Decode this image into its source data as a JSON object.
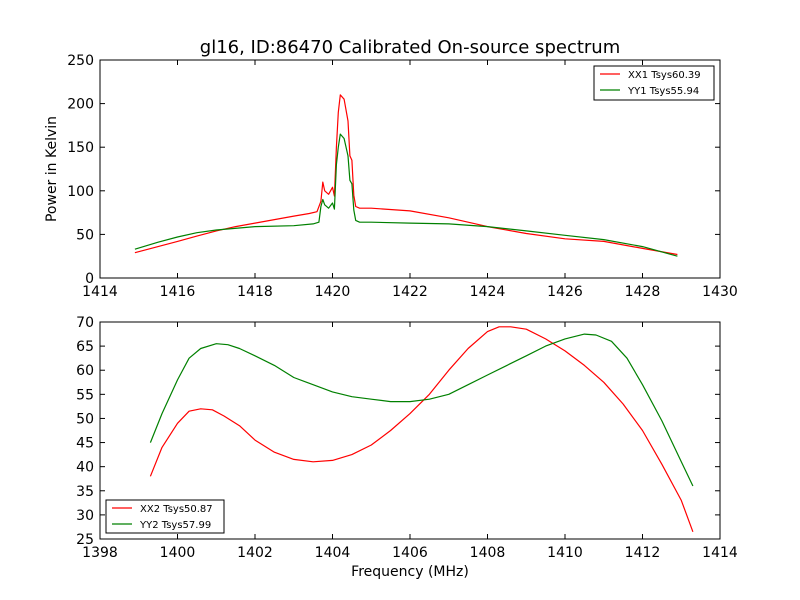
{
  "chart_data": [
    {
      "type": "line",
      "title": "gl16, ID:86470 Calibrated On-source spectrum",
      "xlabel": "",
      "ylabel": "Power in Kelvin",
      "xlim": [
        1414,
        1430
      ],
      "ylim": [
        0,
        250
      ],
      "xticks": [
        1414,
        1416,
        1418,
        1420,
        1422,
        1424,
        1426,
        1428,
        1430
      ],
      "yticks": [
        0,
        50,
        100,
        150,
        200,
        250
      ],
      "grid": false,
      "legend_position": "top-right",
      "series": [
        {
          "name": "XX1 Tsys60.39",
          "color": "#ff0000",
          "x": [
            1414.9,
            1415.5,
            1416.0,
            1416.5,
            1417.0,
            1417.5,
            1418.0,
            1418.5,
            1419.0,
            1419.4,
            1419.6,
            1419.7,
            1419.75,
            1419.8,
            1419.9,
            1420.0,
            1420.05,
            1420.1,
            1420.15,
            1420.2,
            1420.3,
            1420.4,
            1420.45,
            1420.5,
            1420.55,
            1420.6,
            1420.7,
            1421.0,
            1422.0,
            1423.0,
            1424.0,
            1425.0,
            1426.0,
            1427.0,
            1428.0,
            1428.9
          ],
          "y": [
            29,
            36,
            42,
            48,
            54,
            59,
            63,
            67,
            71,
            74,
            76,
            88,
            110,
            100,
            96,
            104,
            94,
            150,
            190,
            210,
            205,
            180,
            140,
            135,
            95,
            82,
            80,
            80,
            77,
            69,
            59,
            51,
            45,
            42,
            34,
            27
          ]
        },
        {
          "name": "YY1 Tsys55.94",
          "color": "#008000",
          "x": [
            1414.9,
            1415.5,
            1416.0,
            1416.5,
            1417.0,
            1418.0,
            1419.0,
            1419.5,
            1419.65,
            1419.7,
            1419.75,
            1419.8,
            1419.9,
            1420.0,
            1420.05,
            1420.1,
            1420.15,
            1420.2,
            1420.3,
            1420.4,
            1420.45,
            1420.5,
            1420.55,
            1420.6,
            1420.7,
            1421.0,
            1422.0,
            1423.0,
            1424.0,
            1425.0,
            1426.0,
            1427.0,
            1428.0,
            1428.9
          ],
          "y": [
            33,
            41,
            47,
            52,
            55,
            59,
            60,
            62,
            64,
            82,
            90,
            84,
            80,
            86,
            79,
            130,
            150,
            165,
            160,
            140,
            112,
            108,
            78,
            66,
            64,
            64,
            63,
            62,
            59,
            54,
            49,
            44,
            36,
            25
          ]
        }
      ]
    },
    {
      "type": "line",
      "title": "",
      "xlabel": "Frequency (MHz)",
      "ylabel": "",
      "xlim": [
        1398,
        1414
      ],
      "ylim": [
        25,
        70
      ],
      "xticks": [
        1398,
        1400,
        1402,
        1404,
        1406,
        1408,
        1410,
        1412,
        1414
      ],
      "yticks": [
        25,
        30,
        35,
        40,
        45,
        50,
        55,
        60,
        65,
        70
      ],
      "grid": false,
      "legend_position": "bottom-left",
      "series": [
        {
          "name": "XX2 Tsys50.87",
          "color": "#ff0000",
          "x": [
            1399.3,
            1399.6,
            1400.0,
            1400.3,
            1400.6,
            1400.9,
            1401.2,
            1401.6,
            1402.0,
            1402.5,
            1403.0,
            1403.5,
            1404.0,
            1404.5,
            1405.0,
            1405.5,
            1406.0,
            1406.5,
            1407.0,
            1407.5,
            1408.0,
            1408.3,
            1408.6,
            1409.0,
            1409.5,
            1410.0,
            1410.5,
            1411.0,
            1411.5,
            1412.0,
            1412.5,
            1413.0,
            1413.3
          ],
          "y": [
            38,
            44,
            49,
            51.5,
            52,
            51.8,
            50.5,
            48.5,
            45.5,
            43,
            41.5,
            41,
            41.3,
            42.5,
            44.5,
            47.5,
            51,
            55,
            60,
            64.5,
            68,
            69,
            69,
            68.5,
            66.5,
            64,
            61,
            57.5,
            53,
            47.5,
            40.5,
            33,
            26.5
          ]
        },
        {
          "name": "YY2 Tsys57.99",
          "color": "#008000",
          "x": [
            1399.3,
            1399.6,
            1400.0,
            1400.3,
            1400.6,
            1401.0,
            1401.3,
            1401.6,
            1402.0,
            1402.5,
            1403.0,
            1403.5,
            1404.0,
            1404.5,
            1405.0,
            1405.5,
            1406.0,
            1406.5,
            1407.0,
            1407.5,
            1408.0,
            1408.5,
            1409.0,
            1409.5,
            1410.0,
            1410.5,
            1410.8,
            1411.2,
            1411.6,
            1412.0,
            1412.5,
            1413.0,
            1413.3
          ],
          "y": [
            45,
            51,
            58,
            62.5,
            64.5,
            65.5,
            65.3,
            64.5,
            63,
            61,
            58.5,
            57,
            55.5,
            54.5,
            54,
            53.5,
            53.5,
            54,
            55,
            57,
            59,
            61,
            63,
            65,
            66.5,
            67.5,
            67.3,
            66,
            62.5,
            57,
            49.5,
            41,
            36
          ]
        }
      ]
    }
  ]
}
